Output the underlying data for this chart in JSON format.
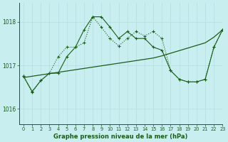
{
  "title": "Graphe pression niveau de la mer (hPa)",
  "bg_color": "#c8eef0",
  "grid_color": "#b8e0e2",
  "line_color": "#1a5c1a",
  "xlim": [
    -0.5,
    23
  ],
  "ylim": [
    1015.65,
    1018.45
  ],
  "yticks": [
    1016,
    1017,
    1018
  ],
  "xticks": [
    0,
    1,
    2,
    3,
    4,
    5,
    6,
    7,
    8,
    9,
    10,
    11,
    12,
    13,
    14,
    15,
    16,
    17,
    18,
    19,
    20,
    21,
    22,
    23
  ],
  "hours": [
    0,
    1,
    2,
    3,
    4,
    5,
    6,
    7,
    8,
    9,
    10,
    11,
    12,
    13,
    14,
    15,
    16,
    17,
    18,
    19,
    20,
    21,
    22,
    23
  ],
  "solid_line": [
    1016.75,
    1016.4,
    1016.65,
    1016.82,
    1016.82,
    1017.2,
    1017.42,
    1017.82,
    1018.12,
    1018.12,
    1017.88,
    1017.62,
    1017.78,
    1017.62,
    1017.62,
    1017.42,
    1017.35,
    1016.88,
    1016.68,
    1016.62,
    1016.62,
    1016.68,
    1017.42,
    1017.82
  ],
  "dotted_line": [
    1016.75,
    1016.38,
    1016.65,
    1016.82,
    1017.2,
    1017.42,
    1017.42,
    1017.52,
    1018.12,
    1017.88,
    1017.62,
    1017.45,
    1017.62,
    1017.78,
    1017.68,
    1017.78,
    1017.62,
    1016.88,
    1016.68,
    1016.62,
    1016.62,
    1016.68,
    1017.42,
    1017.82
  ],
  "trend_line": [
    1016.72,
    1016.75,
    1016.78,
    1016.81,
    1016.84,
    1016.87,
    1016.9,
    1016.93,
    1016.96,
    1016.99,
    1017.02,
    1017.05,
    1017.08,
    1017.11,
    1017.14,
    1017.17,
    1017.22,
    1017.28,
    1017.34,
    1017.4,
    1017.46,
    1017.52,
    1017.65,
    1017.82
  ]
}
